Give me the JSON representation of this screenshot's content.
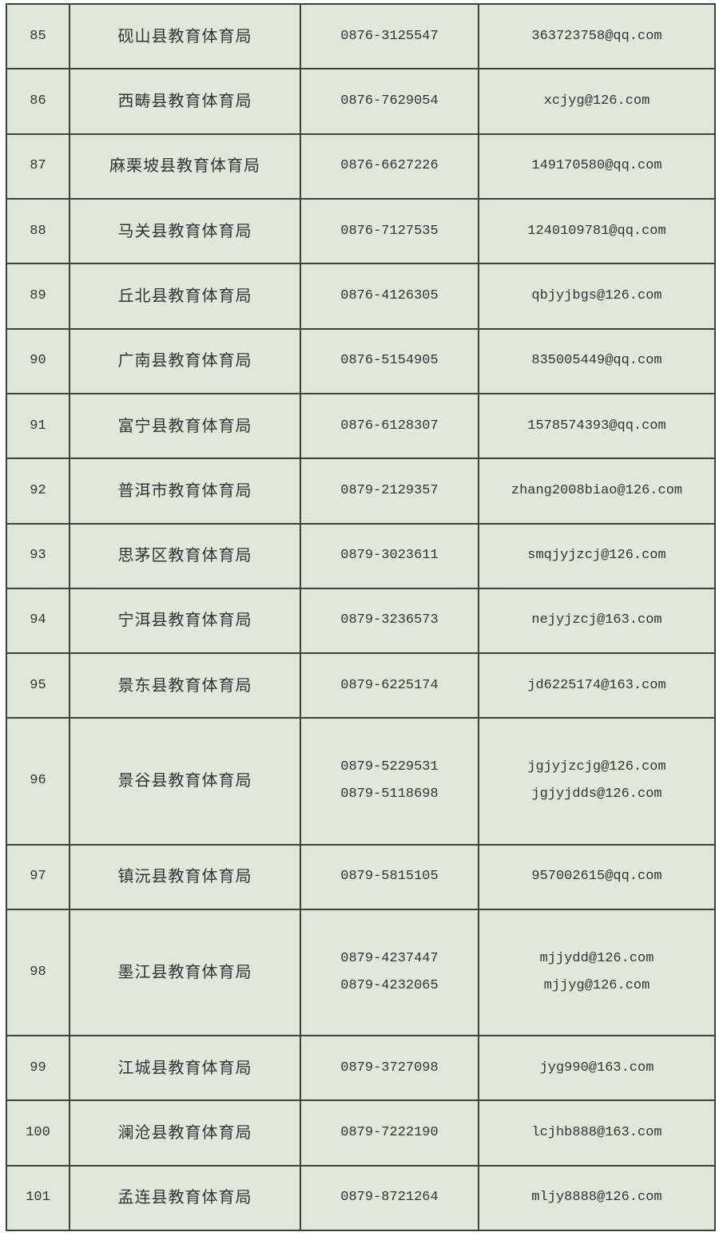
{
  "colors": {
    "page_bg": "#ffffff",
    "cell_bg": "#dfe9da",
    "border": "#3e423a",
    "text": "#333333"
  },
  "table": {
    "columns": [
      "serial",
      "organization",
      "phone",
      "email"
    ],
    "rows": [
      {
        "no": "85",
        "name": "砚山县教育体育局",
        "phones": [
          "0876-3125547"
        ],
        "emails": [
          "363723758@qq.com"
        ]
      },
      {
        "no": "86",
        "name": "西畴县教育体育局",
        "phones": [
          "0876-7629054"
        ],
        "emails": [
          "xcjyg@126.com"
        ]
      },
      {
        "no": "87",
        "name": "麻栗坡县教育体育局",
        "phones": [
          "0876-6627226"
        ],
        "emails": [
          "149170580@qq.com"
        ]
      },
      {
        "no": "88",
        "name": "马关县教育体育局",
        "phones": [
          "0876-7127535"
        ],
        "emails": [
          "1240109781@qq.com"
        ]
      },
      {
        "no": "89",
        "name": "丘北县教育体育局",
        "phones": [
          "0876-4126305"
        ],
        "emails": [
          "qbjyjbgs@126.com"
        ]
      },
      {
        "no": "90",
        "name": "广南县教育体育局",
        "phones": [
          "0876-5154905"
        ],
        "emails": [
          "835005449@qq.com"
        ]
      },
      {
        "no": "91",
        "name": "富宁县教育体育局",
        "phones": [
          "0876-6128307"
        ],
        "emails": [
          "1578574393@qq.com"
        ]
      },
      {
        "no": "92",
        "name": "普洱市教育体育局",
        "phones": [
          "0879-2129357"
        ],
        "emails": [
          "zhang2008biao@126.com"
        ]
      },
      {
        "no": "93",
        "name": "思茅区教育体育局",
        "phones": [
          "0879-3023611"
        ],
        "emails": [
          "smqjyjzcj@126.com"
        ]
      },
      {
        "no": "94",
        "name": "宁洱县教育体育局",
        "phones": [
          "0879-3236573"
        ],
        "emails": [
          "nejyjzcj@163.com"
        ]
      },
      {
        "no": "95",
        "name": "景东县教育体育局",
        "phones": [
          "0879-6225174"
        ],
        "emails": [
          "jd6225174@163.com"
        ]
      },
      {
        "no": "96",
        "name": "景谷县教育体育局",
        "phones": [
          "0879-5229531",
          "0879-5118698"
        ],
        "emails": [
          "jgjyjzcjg@126.com",
          "jgjyjdds@126.com"
        ]
      },
      {
        "no": "97",
        "name": "镇沅县教育体育局",
        "phones": [
          "0879-5815105"
        ],
        "emails": [
          "957002615@qq.com"
        ]
      },
      {
        "no": "98",
        "name": "墨江县教育体育局",
        "phones": [
          "0879-4237447",
          "0879-4232065"
        ],
        "emails": [
          "mjjydd@126.com",
          "mjjyg@126.com"
        ]
      },
      {
        "no": "99",
        "name": "江城县教育体育局",
        "phones": [
          "0879-3727098"
        ],
        "emails": [
          "jyg990@163.com"
        ]
      },
      {
        "no": "100",
        "name": "澜沧县教育体育局",
        "phones": [
          "0879-7222190"
        ],
        "emails": [
          "lcjhb888@163.com"
        ]
      },
      {
        "no": "101",
        "name": "孟连县教育体育局",
        "phones": [
          "0879-8721264"
        ],
        "emails": [
          "mljy8888@126.com"
        ]
      }
    ]
  }
}
